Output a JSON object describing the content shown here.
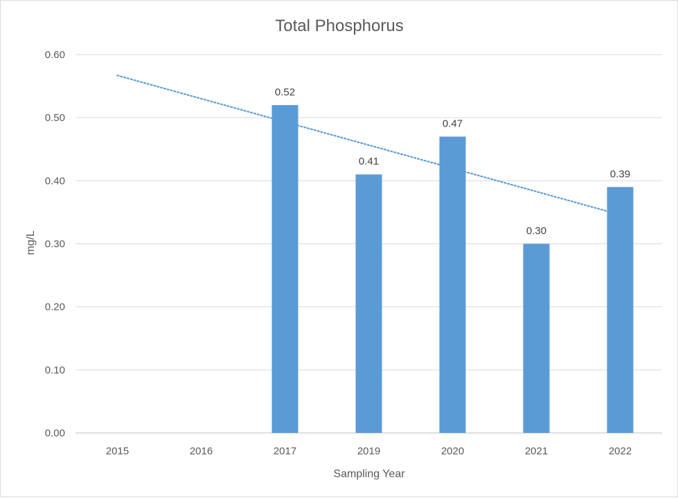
{
  "chart_data": {
    "type": "bar",
    "title": "Total Phosphorus",
    "xlabel": "Sampling Year",
    "ylabel": "mg/L",
    "categories": [
      "2015",
      "2016",
      "2017",
      "2019",
      "2020",
      "2021",
      "2022"
    ],
    "series": [
      {
        "values": [
          null,
          null,
          0.52,
          0.41,
          0.47,
          0.3,
          0.39
        ]
      }
    ],
    "data_labels": [
      "",
      "",
      "0.52",
      "0.41",
      "0.47",
      "0.30",
      "0.39"
    ],
    "trendline": {
      "style": "dotted linear",
      "start_value": 0.567,
      "end_value": 0.346
    },
    "ylim": [
      0,
      0.6
    ],
    "yticks": [
      "0.00",
      "0.10",
      "0.20",
      "0.30",
      "0.40",
      "0.50",
      "0.60"
    ],
    "grid": true,
    "legend": "none",
    "colors": {
      "bar": "#5b9bd5",
      "trend": "#5b9bd5",
      "grid": "#d9d9d9",
      "text": "#595959"
    }
  }
}
